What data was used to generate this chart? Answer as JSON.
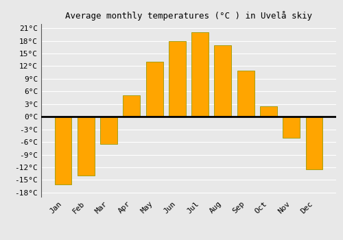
{
  "title": "Average monthly temperatures (°C ) in Uvelå skiy",
  "months": [
    "Jan",
    "Feb",
    "Mar",
    "Apr",
    "May",
    "Jun",
    "Jul",
    "Aug",
    "Sep",
    "Oct",
    "Nov",
    "Dec"
  ],
  "values": [
    -16,
    -14,
    -6.5,
    5,
    13,
    18,
    20,
    17,
    11,
    2.5,
    -5,
    -12.5
  ],
  "bar_color": "#FFA500",
  "bar_edgecolor": "#999900",
  "background_color": "#e8e8e8",
  "grid_color": "#ffffff",
  "zero_line_color": "#000000",
  "ylim": [
    -19,
    22
  ],
  "yticks": [
    -18,
    -15,
    -12,
    -9,
    -6,
    -3,
    0,
    3,
    6,
    9,
    12,
    15,
    18,
    21
  ],
  "ytick_labels": [
    "-18°C",
    "-15°C",
    "-12°C",
    "-9°C",
    "-6°C",
    "-3°C",
    "0°C",
    "3°C",
    "6°C",
    "9°C",
    "12°C",
    "15°C",
    "18°C",
    "21°C"
  ],
  "title_fontsize": 9,
  "tick_fontsize": 8,
  "bar_width": 0.75,
  "xlabel_rotation": 45
}
